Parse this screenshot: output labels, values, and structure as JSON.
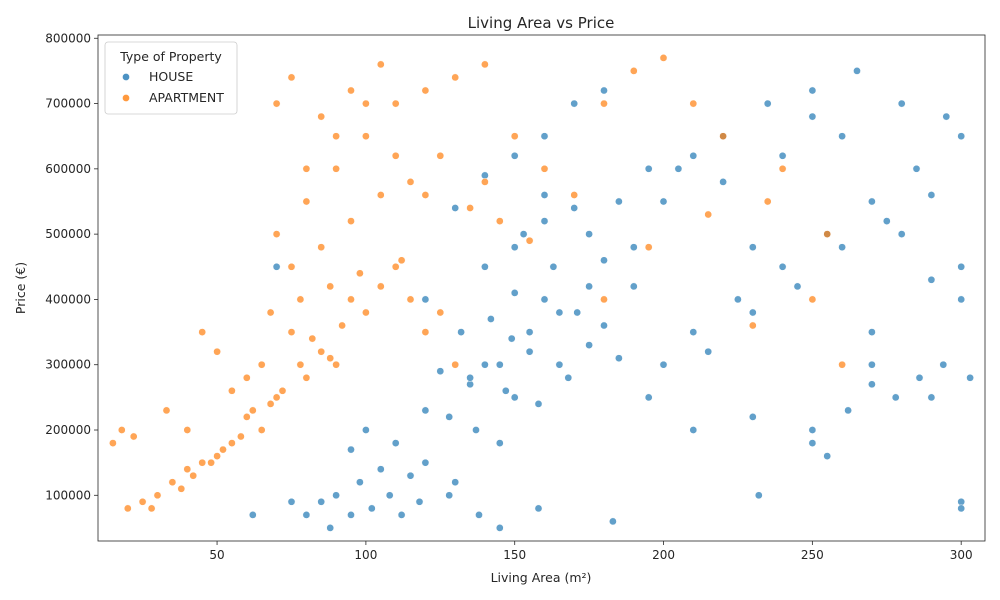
{
  "chart_data": {
    "type": "scatter",
    "title": "Living Area vs Price",
    "xlabel": "Living Area (m²)",
    "ylabel": "Price (€)",
    "xlim": [
      10,
      308
    ],
    "ylim": [
      30000,
      805000
    ],
    "xticks": [
      "50",
      "100",
      "150",
      "200",
      "250",
      "300"
    ],
    "xtick_values": [
      50,
      100,
      150,
      200,
      250,
      300
    ],
    "yticks": [
      "100000",
      "200000",
      "300000",
      "400000",
      "500000",
      "600000",
      "700000",
      "800000"
    ],
    "ytick_values": [
      100000,
      200000,
      300000,
      400000,
      500000,
      600000,
      700000,
      800000
    ],
    "grid": false,
    "legend": {
      "title": "Type of Property",
      "placement": "top-left",
      "entries": [
        "HOUSE",
        "APARTMENT"
      ]
    },
    "series": [
      {
        "name": "HOUSE",
        "color": "#1f77b4",
        "x": [
          140,
          155,
          168,
          132,
          147,
          160,
          175,
          150,
          125,
          185,
          142,
          158,
          137,
          163,
          171,
          149,
          128,
          190,
          145,
          153,
          120,
          180,
          135,
          165,
          150,
          200,
          210,
          225,
          240,
          255,
          270,
          285,
          300,
          195,
          215,
          230,
          245,
          260,
          275,
          290,
          205,
          220,
          235,
          250,
          265,
          280,
          295,
          210,
          230,
          250,
          270,
          290,
          300,
          175,
          185,
          195,
          160,
          170,
          180,
          100,
          110,
          120,
          130,
          95,
          105,
          115,
          90,
          85,
          140,
          150,
          160,
          130,
          120,
          155,
          165,
          175,
          145,
          135,
          200,
          220,
          240,
          260,
          280,
          300,
          210,
          230,
          250,
          270,
          290,
          190,
          170,
          180,
          160,
          150,
          140,
          300,
          300,
          232,
          183,
          158,
          145,
          138,
          128,
          112,
          102,
          95,
          88,
          118,
          108,
          98,
          62,
          70,
          75,
          80,
          250,
          255,
          262,
          270,
          278,
          286,
          294,
          303
        ],
        "y": [
          300000,
          320000,
          280000,
          350000,
          260000,
          400000,
          330000,
          250000,
          290000,
          310000,
          370000,
          240000,
          200000,
          450000,
          380000,
          340000,
          220000,
          420000,
          180000,
          500000,
          230000,
          360000,
          270000,
          300000,
          410000,
          300000,
          350000,
          400000,
          450000,
          500000,
          550000,
          600000,
          650000,
          250000,
          320000,
          380000,
          420000,
          480000,
          520000,
          560000,
          600000,
          650000,
          700000,
          720000,
          750000,
          700000,
          680000,
          200000,
          220000,
          180000,
          300000,
          250000,
          400000,
          500000,
          550000,
          600000,
          650000,
          700000,
          720000,
          200000,
          180000,
          150000,
          120000,
          170000,
          140000,
          130000,
          100000,
          90000,
          450000,
          480000,
          520000,
          540000,
          400000,
          350000,
          380000,
          420000,
          300000,
          280000,
          550000,
          580000,
          620000,
          650000,
          500000,
          450000,
          620000,
          480000,
          680000,
          350000,
          430000,
          480000,
          540000,
          460000,
          560000,
          620000,
          590000,
          90000,
          80000,
          100000,
          60000,
          80000,
          50000,
          70000,
          100000,
          70000,
          80000,
          70000,
          50000,
          90000,
          100000,
          120000,
          70000,
          450000,
          90000,
          70000,
          200000,
          160000,
          230000,
          270000,
          250000,
          280000,
          300000,
          280000
        ]
      },
      {
        "name": "APARTMENT",
        "color": "#ff7f0e",
        "x": [
          70,
          80,
          90,
          60,
          75,
          85,
          95,
          65,
          55,
          100,
          72,
          82,
          92,
          68,
          78,
          88,
          50,
          45,
          40,
          35,
          105,
          110,
          115,
          120,
          125,
          130,
          62,
          58,
          52,
          48,
          42,
          38,
          30,
          25,
          20,
          15,
          70,
          80,
          90,
          100,
          110,
          120,
          130,
          140,
          75,
          85,
          95,
          105,
          115,
          125,
          65,
          60,
          55,
          50,
          45,
          40,
          80,
          90,
          100,
          110,
          70,
          75,
          85,
          95,
          105,
          150,
          160,
          170,
          180,
          190,
          200,
          210,
          220,
          230,
          240,
          250,
          260,
          180,
          195,
          215,
          235,
          255,
          140,
          135,
          145,
          155,
          120,
          112,
          98,
          88,
          78,
          68,
          28,
          33,
          22,
          18
        ],
        "y": [
          250000,
          280000,
          300000,
          220000,
          350000,
          320000,
          400000,
          200000,
          180000,
          380000,
          260000,
          340000,
          360000,
          240000,
          300000,
          310000,
          160000,
          150000,
          140000,
          120000,
          420000,
          450000,
          400000,
          350000,
          380000,
          300000,
          230000,
          190000,
          170000,
          150000,
          130000,
          110000,
          100000,
          90000,
          80000,
          180000,
          500000,
          550000,
          600000,
          650000,
          700000,
          720000,
          740000,
          760000,
          450000,
          480000,
          520000,
          560000,
          580000,
          620000,
          300000,
          280000,
          260000,
          320000,
          350000,
          200000,
          600000,
          650000,
          700000,
          620000,
          700000,
          740000,
          680000,
          720000,
          760000,
          650000,
          600000,
          560000,
          700000,
          750000,
          770000,
          700000,
          650000,
          360000,
          600000,
          400000,
          300000,
          400000,
          480000,
          530000,
          550000,
          500000,
          580000,
          540000,
          520000,
          490000,
          560000,
          460000,
          440000,
          420000,
          400000,
          380000,
          80000,
          230000,
          190000,
          200000
        ]
      }
    ]
  }
}
